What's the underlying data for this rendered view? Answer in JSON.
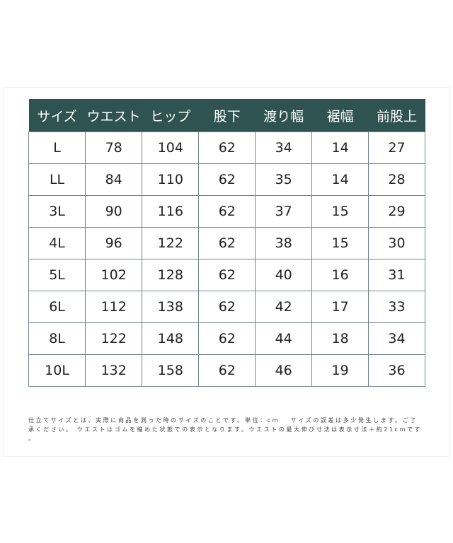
{
  "size_chart": {
    "headers": [
      "サイズ",
      "ウエスト",
      "ヒップ",
      "股下",
      "渡り幅",
      "裾幅",
      "前股上"
    ],
    "rows": [
      [
        "L",
        "78",
        "104",
        "62",
        "34",
        "14",
        "27"
      ],
      [
        "LL",
        "84",
        "110",
        "62",
        "35",
        "14",
        "28"
      ],
      [
        "3L",
        "90",
        "116",
        "62",
        "37",
        "15",
        "29"
      ],
      [
        "4L",
        "96",
        "122",
        "62",
        "38",
        "15",
        "30"
      ],
      [
        "5L",
        "102",
        "128",
        "62",
        "40",
        "16",
        "31"
      ],
      [
        "6L",
        "112",
        "138",
        "62",
        "42",
        "17",
        "33"
      ],
      [
        "8L",
        "122",
        "148",
        "62",
        "44",
        "18",
        "34"
      ],
      [
        "10L",
        "132",
        "158",
        "62",
        "46",
        "19",
        "36"
      ]
    ],
    "header_color": "#2f5350"
  },
  "note": {
    "lines": [
      "仕立てサイズとは、実際に商品を測った時のサイズのことです。単位：cm　 サイズの誤差は多少発生します。ご了",
      "承ください。 ウエストはゴムを縮めた状態での表示となります。ウエストの最大伸び寸法は表示寸法＋約21cmです",
      "。"
    ]
  }
}
